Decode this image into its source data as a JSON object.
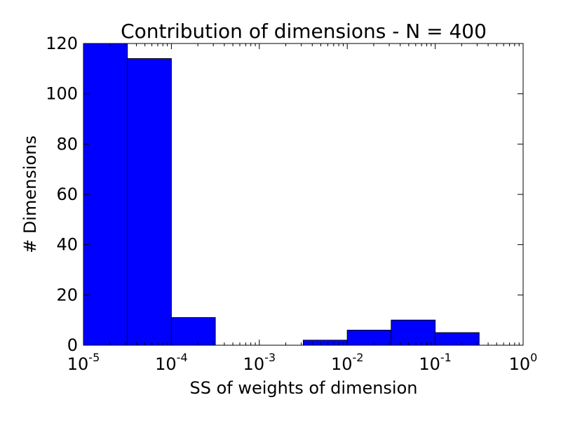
{
  "chart_data": {
    "type": "bar",
    "title": "Contribution of dimensions - N = 400",
    "xlabel": "SS of weights of dimension",
    "ylabel": "# Dimensions",
    "x_scale": "log",
    "xlim": [
      1e-05,
      1
    ],
    "ylim": [
      0,
      120
    ],
    "grid": false,
    "bar_color": "#0000ff",
    "bins": [
      {
        "x0": 1e-05,
        "x1": 3.16e-05,
        "value": 120
      },
      {
        "x0": 3.16e-05,
        "x1": 0.0001,
        "value": 114
      },
      {
        "x0": 0.0001,
        "x1": 0.000316,
        "value": 11
      },
      {
        "x0": 0.000316,
        "x1": 0.001,
        "value": 0
      },
      {
        "x0": 0.001,
        "x1": 0.00316,
        "value": 0
      },
      {
        "x0": 0.00316,
        "x1": 0.01,
        "value": 2
      },
      {
        "x0": 0.01,
        "x1": 0.0316,
        "value": 6
      },
      {
        "x0": 0.0316,
        "x1": 0.1,
        "value": 10
      },
      {
        "x0": 0.1,
        "x1": 0.316,
        "value": 5
      }
    ],
    "x_ticks": [
      {
        "value": 1e-05,
        "base": "10",
        "exp": "-5"
      },
      {
        "value": 0.0001,
        "base": "10",
        "exp": "-4"
      },
      {
        "value": 0.001,
        "base": "10",
        "exp": "-3"
      },
      {
        "value": 0.01,
        "base": "10",
        "exp": "-2"
      },
      {
        "value": 0.1,
        "base": "10",
        "exp": "-1"
      },
      {
        "value": 1,
        "base": "10",
        "exp": "0"
      }
    ],
    "y_ticks": [
      {
        "value": 0,
        "label": "0"
      },
      {
        "value": 20,
        "label": "20"
      },
      {
        "value": 40,
        "label": "40"
      },
      {
        "value": 60,
        "label": "60"
      },
      {
        "value": 80,
        "label": "80"
      },
      {
        "value": 100,
        "label": "100"
      },
      {
        "value": 120,
        "label": "120"
      }
    ]
  }
}
